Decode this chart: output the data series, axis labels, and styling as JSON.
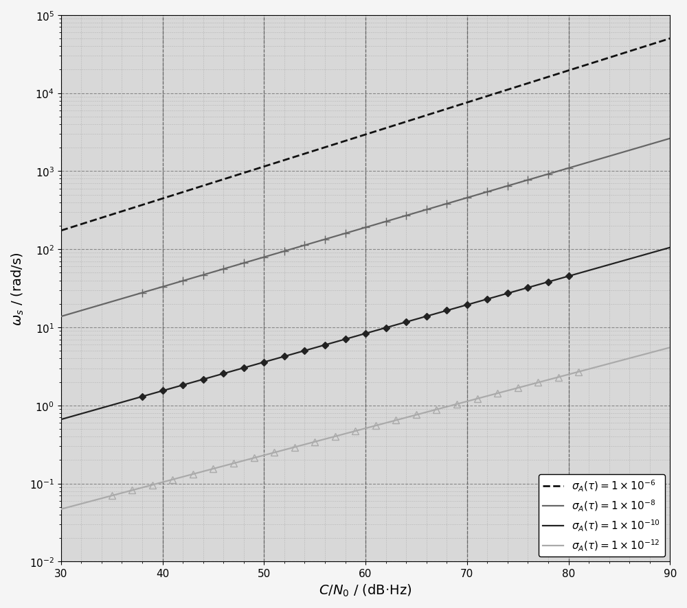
{
  "xlabel": "$C / N_0$ / (dB·Hz)",
  "ylabel": "$\\omega_s$ / (rad/s)",
  "xlim": [
    30,
    90
  ],
  "ylim": [
    0.01,
    100000
  ],
  "xticks": [
    30,
    40,
    50,
    60,
    70,
    80,
    90
  ],
  "vlines": [
    40,
    50,
    60,
    70,
    80
  ],
  "K": 1.0,
  "sigma_values": [
    1e-06,
    1e-08,
    1e-10,
    1e-12
  ],
  "colors": [
    "#111111",
    "#666666",
    "#222222",
    "#aaaaaa"
  ],
  "linestyles": [
    "--",
    "-",
    "-",
    "-"
  ],
  "markers": [
    "none",
    "+",
    "D",
    "^"
  ],
  "markersizes": [
    0,
    8,
    5,
    7
  ],
  "markerfacecolors": [
    "#111111",
    "#666666",
    "#222222",
    "none"
  ],
  "markeredgecolors": [
    "#111111",
    "#666666",
    "#222222",
    "#aaaaaa"
  ],
  "linewidths": [
    2.0,
    1.6,
    1.6,
    1.6
  ],
  "labels": [
    "$\\sigma_A(\\tau) = 1\\times10^{-6}$",
    "$\\sigma_A(\\tau) = 1\\times10^{-8}$",
    "$\\sigma_A(\\tau) = 1\\times10^{-10}$",
    "$\\sigma_A(\\tau) = 1\\times10^{-12}$"
  ],
  "marker_step_dB": 2,
  "marker_starts": [
    35,
    38,
    38,
    35
  ],
  "marker_ends": [
    88,
    82,
    82,
    82
  ],
  "bg_color": "#d8d8d8",
  "fig_bg_color": "#f5f5f5",
  "legend_loc": "lower right",
  "xlabel_fontsize": 14,
  "ylabel_fontsize": 14,
  "tick_fontsize": 11,
  "legend_fontsize": 11
}
